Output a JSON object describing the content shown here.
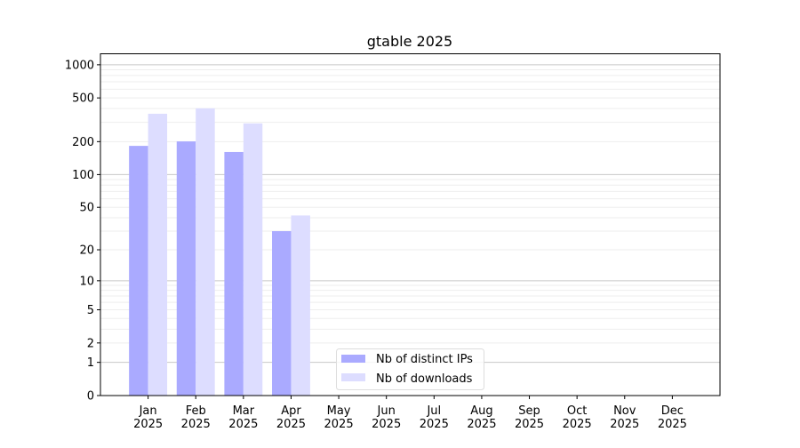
{
  "chart_data": {
    "type": "bar",
    "title": "gtable 2025",
    "xlabel": "",
    "ylabel": "",
    "yscale": "log10(1+y)",
    "ylim": [
      0,
      1270
    ],
    "yticks": [
      0,
      1,
      2,
      5,
      10,
      20,
      50,
      100,
      200,
      500,
      1000
    ],
    "grid": true,
    "legend_placement": "bottom-center",
    "categories": [
      "Jan\n2025",
      "Feb\n2025",
      "Mar\n2025",
      "Apr\n2025",
      "May\n2025",
      "Jun\n2025",
      "Jul\n2025",
      "Aug\n2025",
      "Sep\n2025",
      "Oct\n2025",
      "Nov\n2025",
      "Dec\n2025"
    ],
    "series": [
      {
        "name": "Nb of distinct IPs",
        "color": "#aaaaff",
        "values": [
          183,
          201,
          161,
          30,
          0,
          0,
          0,
          0,
          0,
          0,
          0,
          0
        ]
      },
      {
        "name": "Nb of downloads",
        "color": "#ddddff",
        "values": [
          359,
          402,
          293,
          42,
          0,
          0,
          0,
          0,
          0,
          0,
          0,
          0
        ]
      }
    ]
  }
}
